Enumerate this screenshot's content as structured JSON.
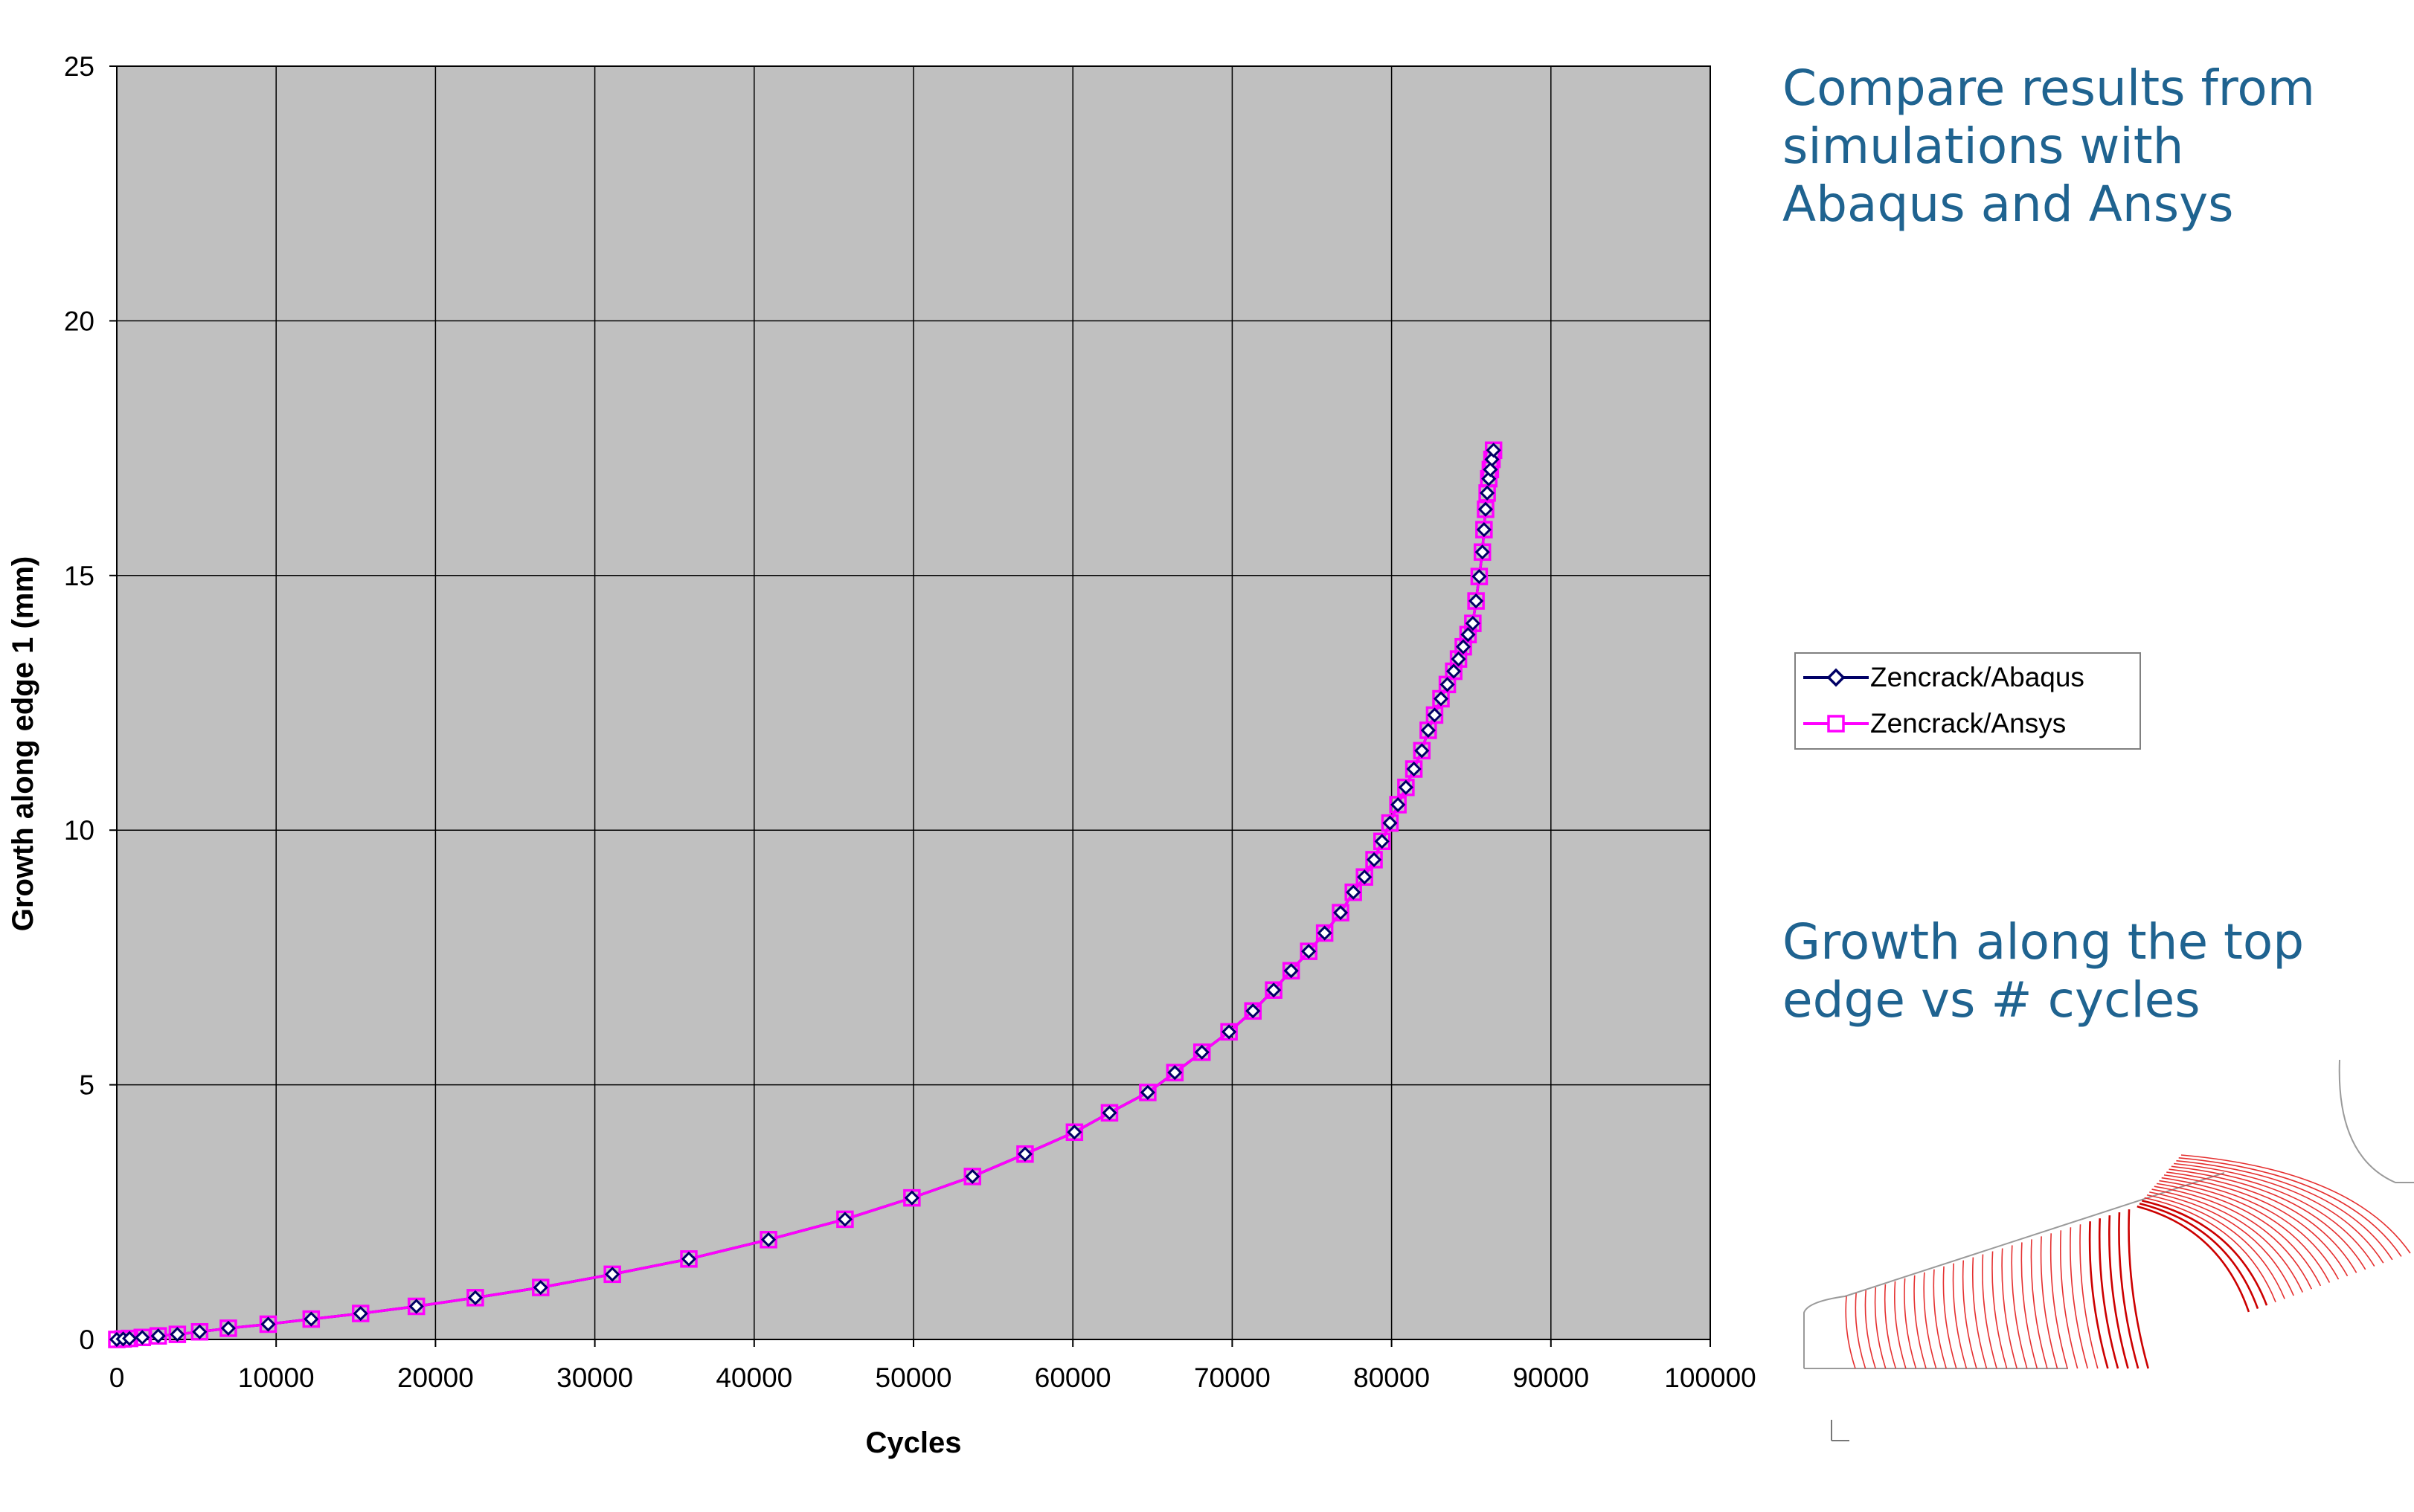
{
  "texts": {
    "compare_heading": "Compare results from\nsimulations with\nAbaqus and Ansys",
    "growth_heading": "Growth along the top\nedge vs # cycles"
  },
  "chart_data": {
    "type": "line",
    "xlabel": "Cycles",
    "ylabel": "Growth along edge 1 (mm)",
    "xlim": [
      0,
      100000
    ],
    "ylim": [
      0,
      25
    ],
    "x_ticks": [
      0,
      10000,
      20000,
      30000,
      40000,
      50000,
      60000,
      70000,
      80000,
      90000,
      100000
    ],
    "y_ticks": [
      0,
      5,
      10,
      15,
      20,
      25
    ],
    "grid": true,
    "plot_background": "#c0c0c0",
    "legend_position": "right",
    "series": [
      {
        "name": "Zencrack/Abaqus",
        "color": "#000066",
        "marker": "diamond",
        "x": [
          0,
          400,
          800,
          1600,
          2600,
          3800,
          5200,
          7000,
          9500,
          12200,
          15300,
          18800,
          22500,
          26600,
          31100,
          35900,
          40900,
          45700,
          49900,
          53700,
          57000,
          60100,
          62300,
          64700,
          66400,
          68100,
          69800,
          71300,
          72600,
          73700,
          74800,
          75800,
          76800,
          77600,
          78300,
          78900,
          79400,
          79900,
          80400,
          80900,
          81400,
          81900,
          82300,
          82700,
          83100,
          83500,
          83900,
          84200,
          84500,
          84800,
          85100,
          85300,
          85500,
          85700,
          85800,
          85900,
          86000,
          86100,
          86200,
          86300,
          86400
        ],
        "y": [
          0.0,
          0.01,
          0.02,
          0.04,
          0.07,
          0.1,
          0.15,
          0.22,
          0.3,
          0.4,
          0.51,
          0.65,
          0.82,
          1.02,
          1.28,
          1.58,
          1.96,
          2.36,
          2.78,
          3.2,
          3.64,
          4.07,
          4.45,
          4.85,
          5.24,
          5.64,
          6.04,
          6.45,
          6.86,
          7.24,
          7.62,
          7.98,
          8.38,
          8.78,
          9.08,
          9.42,
          9.78,
          10.14,
          10.5,
          10.84,
          11.2,
          11.56,
          11.96,
          12.26,
          12.58,
          12.86,
          13.12,
          13.36,
          13.6,
          13.84,
          14.06,
          14.5,
          14.98,
          15.46,
          15.9,
          16.3,
          16.62,
          16.9,
          17.08,
          17.28,
          17.46
        ]
      },
      {
        "name": "Zencrack/Ansys",
        "color": "#ff00ff",
        "marker": "square",
        "x": [
          0,
          400,
          800,
          1600,
          2600,
          3800,
          5200,
          7000,
          9500,
          12200,
          15300,
          18800,
          22500,
          26600,
          31100,
          35900,
          40900,
          45700,
          49900,
          53700,
          57000,
          60100,
          62300,
          64700,
          66400,
          68100,
          69800,
          71300,
          72600,
          73700,
          74800,
          75800,
          76800,
          77600,
          78300,
          78900,
          79400,
          79900,
          80400,
          80900,
          81400,
          81900,
          82300,
          82700,
          83100,
          83500,
          83900,
          84200,
          84500,
          84800,
          85100,
          85300,
          85500,
          85700,
          85800,
          85900,
          86000,
          86100,
          86200,
          86300,
          86400
        ],
        "y": [
          0.0,
          0.01,
          0.02,
          0.04,
          0.07,
          0.1,
          0.15,
          0.22,
          0.3,
          0.4,
          0.51,
          0.65,
          0.82,
          1.02,
          1.28,
          1.58,
          1.96,
          2.36,
          2.78,
          3.2,
          3.64,
          4.07,
          4.45,
          4.85,
          5.24,
          5.64,
          6.04,
          6.45,
          6.86,
          7.24,
          7.62,
          7.98,
          8.38,
          8.78,
          9.08,
          9.42,
          9.78,
          10.14,
          10.5,
          10.84,
          11.2,
          11.56,
          11.96,
          12.26,
          12.58,
          12.86,
          13.12,
          13.36,
          13.6,
          13.84,
          14.06,
          14.5,
          14.98,
          15.46,
          15.9,
          16.3,
          16.62,
          16.9,
          17.08,
          17.28,
          17.46
        ]
      }
    ]
  }
}
